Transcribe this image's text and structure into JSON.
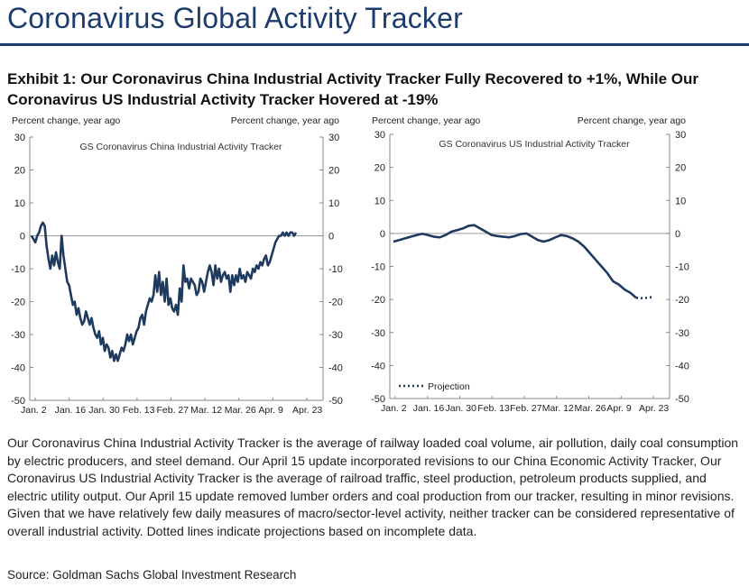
{
  "header": {
    "title": "Coronavirus Global Activity Tracker",
    "exhibit": "Exhibit 1: Our Coronavirus China Industrial Activity Tracker Fully Recovered to +1%, While Our Coronavirus US Industrial Activity Tracker Hovered at -19%"
  },
  "chart_data": [
    {
      "type": "line",
      "title": "GS Coronavirus China Industrial Activity Tracker",
      "ylabel_left": "Percent change, year ago",
      "ylabel_right": "Percent change, year ago",
      "ylim": [
        -50,
        30
      ],
      "yticks": [
        "30",
        "20",
        "10",
        "0",
        "-10",
        "-20",
        "-30",
        "-40",
        "-50"
      ],
      "xtick_labels": [
        "Jan. 2",
        "Jan. 16",
        "Jan. 30",
        "Feb. 13",
        "Feb. 27",
        "Mar. 12",
        "Mar. 26",
        "Apr. 9",
        "Apr. 23"
      ],
      "grid": false,
      "zero_line": true,
      "series": [
        {
          "values": [
            0,
            -1,
            -2,
            0,
            1,
            3,
            4,
            3,
            -3,
            -7,
            -10,
            -6,
            -9,
            -5,
            -8,
            -10,
            0,
            -6,
            -10,
            -14,
            -15,
            -18,
            -21,
            -20,
            -24,
            -22,
            -25,
            -27,
            -26,
            -23,
            -25,
            -27,
            -25,
            -28,
            -30,
            -31,
            -29,
            -33,
            -31,
            -35,
            -33,
            -34,
            -37,
            -35,
            -38,
            -36,
            -38,
            -36,
            -34,
            -35,
            -33,
            -30,
            -32,
            -30,
            -33,
            -31,
            -29,
            -28,
            -25,
            -24,
            -27,
            -23,
            -21,
            -19,
            -20,
            -18,
            -12,
            -17,
            -11,
            -18,
            -14,
            -20,
            -13,
            -21,
            -19,
            -22,
            -23,
            -21,
            -24,
            -16,
            -20,
            -9,
            -14,
            -13,
            -16,
            -13,
            -14,
            -15,
            -18,
            -17,
            -13,
            -14,
            -17,
            -14,
            -11,
            -9,
            -11,
            -15,
            -9,
            -13,
            -10,
            -14,
            -12,
            -11,
            -13,
            -12,
            -17,
            -12,
            -15,
            -12,
            -14,
            -10,
            -13,
            -12,
            -14,
            -11,
            -12,
            -13,
            -10,
            -11,
            -9,
            -10,
            -8,
            -9,
            -7,
            -6,
            -9,
            -8,
            -6,
            -4,
            -2,
            -1,
            0,
            0,
            1,
            0,
            1,
            0,
            1,
            1,
            0,
            1
          ]
        }
      ]
    },
    {
      "type": "line",
      "title": "GS Coronavirus US Industrial Activity Tracker",
      "ylabel_left": "Percent change, year ago",
      "ylabel_right": "Percent change, year ago",
      "ylim": [
        -50,
        30
      ],
      "yticks": [
        "30",
        "20",
        "10",
        "0",
        "-10",
        "-20",
        "-30",
        "-40",
        "-50"
      ],
      "xtick_labels": [
        "Jan. 2",
        "Jan. 16",
        "Jan. 30",
        "Feb. 13",
        "Feb. 27",
        "Mar. 12",
        "Mar. 26",
        "Apr. 9",
        "Apr. 23"
      ],
      "grid": false,
      "zero_line": true,
      "legend": {
        "label": "Projection",
        "position": "bottom-left"
      },
      "series": [
        {
          "style": "solid",
          "values": [
            -2.5,
            -2,
            -1.5,
            -1,
            -0.5,
            -0.1,
            -0.5,
            -1,
            -1.2,
            -0.5,
            0.5,
            1,
            1.5,
            2.3,
            2.5,
            1.5,
            0.5,
            -0.5,
            -0.8,
            -1,
            -1.2,
            -0.8,
            -0.2,
            0,
            -1,
            -2,
            -2.5,
            -2,
            -1.2,
            -0.5,
            -0.8,
            -1.5,
            -2.5,
            -4,
            -6,
            -8,
            -10,
            -12,
            -14.5,
            -15.5,
            -17,
            -18,
            -19.5
          ]
        },
        {
          "name": "Projection",
          "style": "dotted",
          "values": [
            -19.5,
            -19.6,
            -19.5,
            -19.3
          ]
        }
      ]
    }
  ],
  "description": "Our Coronavirus China Industrial Activity Tracker is the average of railway loaded coal volume, air pollution, daily coal consumption by electric producers, and steel demand. Our April 15 update incorporated revisions to our China Economic Activity Tracker, Our Coronavirus US Industrial Activity Tracker is the average of railroad traffic, steel production, petroleum products supplied, and electric utility output. Our April 15 update removed lumber orders and coal production from our tracker, resulting in minor revisions. Given that we have relatively few daily measures of macro/sector-level activity, neither tracker can be considered representative of overall industrial activity. Dotted lines indicate projections based on incomplete data.",
  "source": "Source: Goldman Sachs Global Investment Research",
  "colors": {
    "line": "#1f3a5f",
    "title": "#1c3c6e",
    "axis": "#888888",
    "zero": "#9a9a9a"
  }
}
